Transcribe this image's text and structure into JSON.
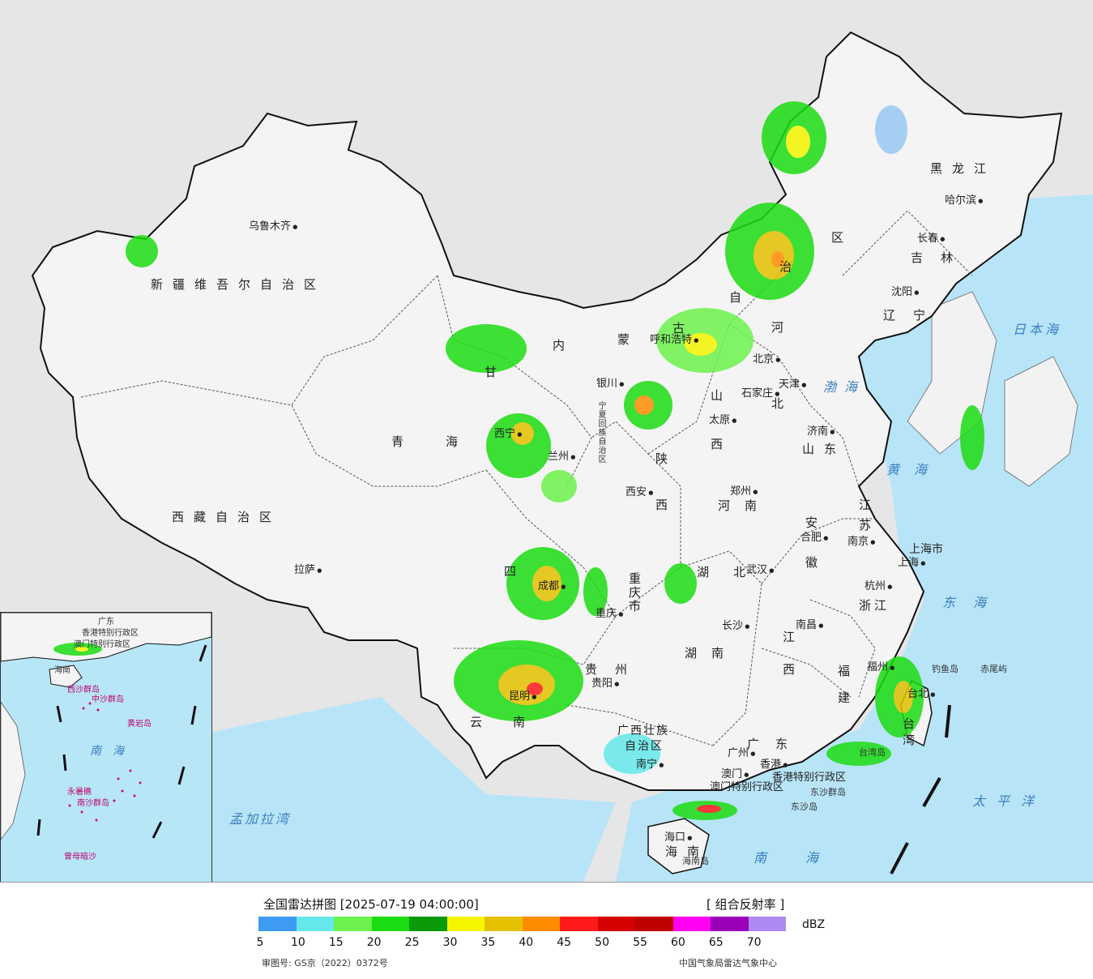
{
  "legend": {
    "title": "全国雷达拼图 [2025-07-19 04:00:00]",
    "product": "[ 组合反射率 ]",
    "unit": "dBZ",
    "colors": [
      "#3d9cf2",
      "#64e8ea",
      "#6cf24c",
      "#1cdc12",
      "#0a9a0a",
      "#f5f500",
      "#e3c100",
      "#ff8c00",
      "#ff1a1a",
      "#d50000",
      "#be0000",
      "#ff00f2",
      "#9a00b8",
      "#ad8af2"
    ],
    "ticks": [
      "5",
      "10",
      "15",
      "20",
      "25",
      "30",
      "35",
      "40",
      "45",
      "50",
      "55",
      "60",
      "65",
      "70"
    ],
    "approval": "审图号: GS京（2022）0372号",
    "source": "中国气象局雷达气象中心"
  },
  "regions": {
    "xinjiang": "新疆维吾尔自治区",
    "xizang": "西藏自治区",
    "qinghai": "青海",
    "gansu": "甘",
    "neimeng_1": "内",
    "neimeng_2": "蒙",
    "neimeng_3": "古",
    "neimeng_4": "自",
    "neimeng_5": "治",
    "neimeng_6": "区",
    "heilongjiang": "黑龙江",
    "jilin": "吉林",
    "liaoning": "辽宁",
    "hebei_1": "河",
    "hebei_2": "北",
    "shanxi_1": "山",
    "shanxi_2": "西",
    "shandong": "山东",
    "henan": "河南",
    "shaanxi_1": "陕",
    "shaanxi_2": "西",
    "ningxia": "宁夏回族自治区",
    "sichuan": "四",
    "chongqing": "重庆市",
    "hubei": "湖北",
    "anhui_1": "安",
    "anhui_2": "徽",
    "jiangsu_1": "江",
    "jiangsu_2": "苏",
    "shanghai": "上海市",
    "zhejiang": "浙江",
    "jiangxi_1": "江",
    "jiangxi_2": "西",
    "hunan": "湖南",
    "guizhou": "贵州",
    "yunnan": "云南",
    "guangxi_1": "广西壮族",
    "guangxi_2": "自治区",
    "guangdong": "广东",
    "fujian_1": "福",
    "fujian_2": "建",
    "taiwan_1": "台",
    "taiwan_2": "湾",
    "hainan_1": "海",
    "hainan_2": "南",
    "hk": "香港特别行政区",
    "macau": "澳门特别行政区",
    "hk_city": "香港",
    "macau_city": "澳门"
  },
  "cities": {
    "urumqi": "乌鲁木齐",
    "lhasa": "拉萨",
    "lanzhou": "兰州",
    "xining": "西宁",
    "yinchuan": "银川",
    "hohhot": "呼和浩特",
    "beijing": "北京",
    "tianjin": "天津",
    "shijiazhuang": "石家庄",
    "taiyuan": "太原",
    "jinan": "济南",
    "zhengzhou": "郑州",
    "xian": "西安",
    "harbin": "哈尔滨",
    "changchun": "长春",
    "shenyang": "沈阳",
    "hefei": "合肥",
    "nanjing": "南京",
    "shanghai": "上海",
    "hangzhou": "杭州",
    "wuhan": "武汉",
    "changsha": "长沙",
    "nanchang": "南昌",
    "fuzhou": "福州",
    "chengdu": "成都",
    "chongqing": "重庆",
    "guiyang": "贵阳",
    "kunming": "昆明",
    "nanning": "南宁",
    "guangzhou": "广州",
    "haikou": "海口",
    "taipei": "台北"
  },
  "seas": {
    "bohai": "渤海",
    "yellow": "黄海",
    "east": "东海",
    "south": "南海",
    "pacific": "太平洋",
    "japan": "日本海",
    "bengal": "孟加拉湾"
  },
  "islands": {
    "taiwan_island": "台湾岛",
    "hainan_island": "海南岛",
    "diaoyu": "钓鱼岛",
    "chiwei": "赤尾屿",
    "dongsha_qundao": "东沙群岛",
    "dongsha_dao": "东沙岛"
  },
  "inset": {
    "guangdong": "广东",
    "hk": "香港特别行政区",
    "macau": "澳门特别行政区",
    "hainan": "海南",
    "xisha": "西沙群岛",
    "zhongsha": "中沙群岛",
    "huangyan": "黄岩岛",
    "sea": "南海",
    "nansha": "南沙群岛",
    "yongshu": "永暑礁",
    "zengmu": "曾母暗沙"
  }
}
